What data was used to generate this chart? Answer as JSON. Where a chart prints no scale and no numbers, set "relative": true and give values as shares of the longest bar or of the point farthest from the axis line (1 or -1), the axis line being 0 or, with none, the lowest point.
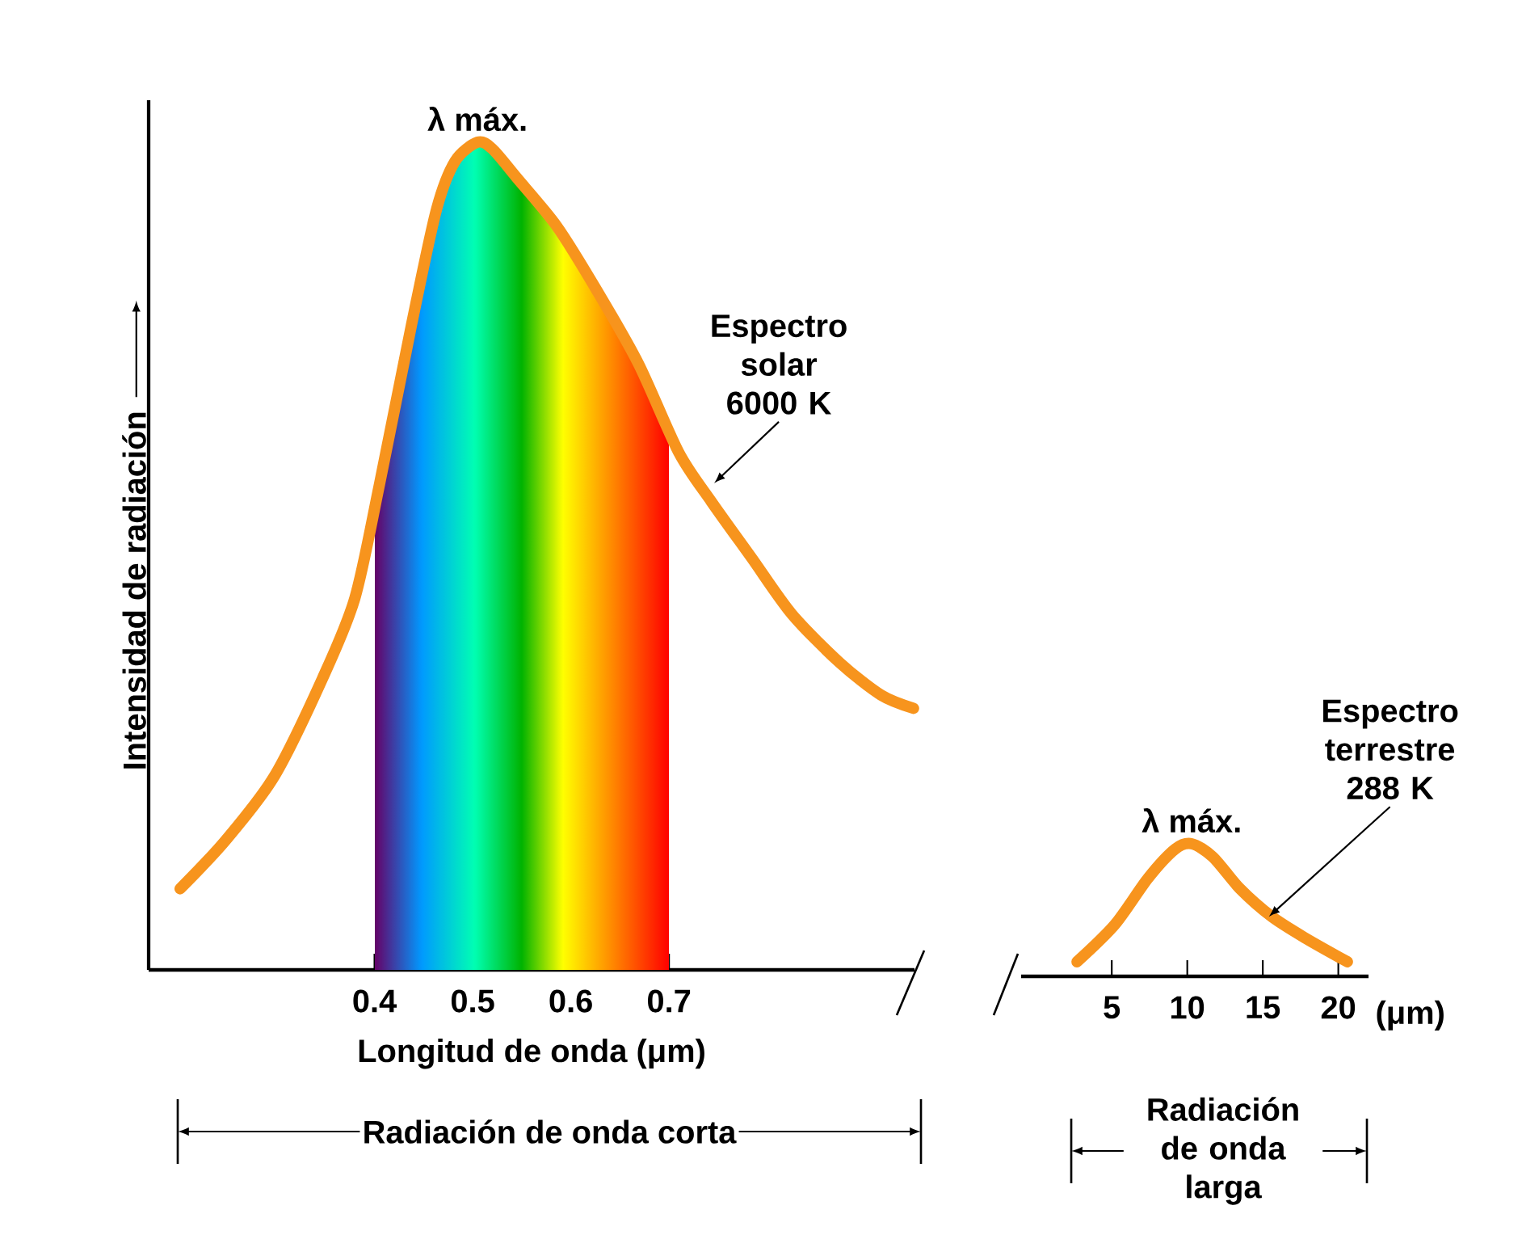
{
  "chart_data": [
    {
      "type": "line",
      "relative": true,
      "xlim": [
        0.17,
        0.95
      ],
      "xticks": [
        0.4,
        0.5,
        0.6,
        0.7
      ],
      "tick_labels": "x",
      "xlabel": "Longitud de onda (μm)",
      "ylabel": "Intensidad de radiación",
      "x": [
        0.202,
        0.248,
        0.298,
        0.347,
        0.38,
        0.405,
        0.438,
        0.463,
        0.482,
        0.505,
        0.52,
        0.545,
        0.586,
        0.627,
        0.669,
        0.71,
        0.743,
        0.784,
        0.825,
        0.874,
        0.916,
        0.949
      ],
      "series": [
        {
          "color": "#f7941d",
          "values": [
            0.098,
            0.156,
            0.234,
            0.352,
            0.449,
            0.586,
            0.781,
            0.918,
            0.977,
            1.0,
            0.992,
            0.957,
            0.898,
            0.82,
            0.732,
            0.625,
            0.566,
            0.498,
            0.43,
            0.371,
            0.332,
            0.316
          ]
        }
      ],
      "bands": [
        {
          "axis": "x",
          "from": 0.4,
          "to": 0.7
        }
      ],
      "annotations": [
        {
          "text": "λ máx.",
          "x": 0.505,
          "y": 1.0
        },
        {
          "text": "Espectro solar 6000 K",
          "x": 0.746,
          "y": 0.588
        },
        "Radiación de onda corta"
      ]
    },
    {
      "type": "line",
      "relative": true,
      "xlim": [
        -1,
        22
      ],
      "xticks": [
        5,
        10,
        15,
        20
      ],
      "tick_labels": "x",
      "xlabel": "(μm)",
      "x": [
        2.7,
        5.2,
        7.4,
        9.2,
        10.3,
        11.7,
        13.5,
        15.6,
        17.8,
        20.6
      ],
      "series": [
        {
          "color": "#f7941d",
          "values": [
            0.11,
            0.39,
            0.74,
            0.96,
            1.0,
            0.9,
            0.66,
            0.45,
            0.29,
            0.11
          ]
        }
      ],
      "annotations": [
        {
          "text": "λ máx.",
          "x": 10.3,
          "y": 1.0
        },
        {
          "text": "Espectro terrestre 288 K",
          "x": 15.4,
          "y": 0.45
        },
        "Radiación de onda larga"
      ]
    }
  ]
}
